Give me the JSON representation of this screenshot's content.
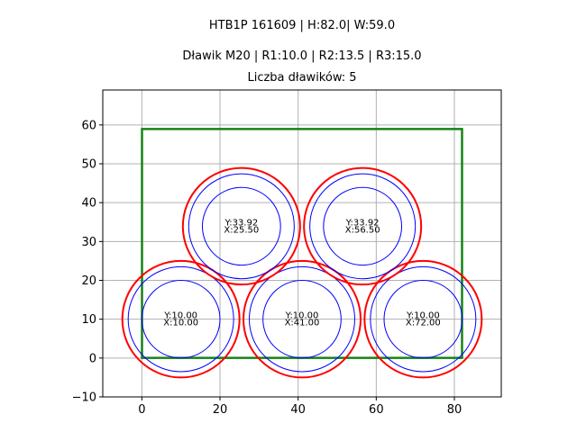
{
  "chart_data": {
    "type": "scatter",
    "title_lines": [
      "HTB1P 161609 | H:82.0| W:59.0",
      "Dławik M20 | R1:10.0 | R2:13.5 | R3:15.0",
      "Liczba dławików: 5"
    ],
    "xlim": [
      -10,
      92
    ],
    "ylim": [
      -10,
      69
    ],
    "x_ticks": [
      0,
      20,
      40,
      60,
      80
    ],
    "y_ticks": [
      -10,
      0,
      10,
      20,
      30,
      40,
      50,
      60
    ],
    "x_tick_labels": [
      "0",
      "20",
      "40",
      "60",
      "80"
    ],
    "y_tick_labels": [
      "−10",
      "0",
      "10",
      "20",
      "30",
      "40",
      "50",
      "60"
    ],
    "grid": true,
    "colors": {
      "outer_rect": "#008000",
      "inner_rect": "#3a8a3a",
      "r3_circle": "#ff0000",
      "r1_r2_circles": "#0000ff",
      "grid": "#b0b0b0"
    },
    "box": {
      "x": 0,
      "y": 0,
      "width": 82,
      "height": 59
    },
    "radii": {
      "r1": 10.0,
      "r2": 13.5,
      "r3": 15.0
    },
    "glands": [
      {
        "x": 10.0,
        "y": 10.0,
        "label_y": "Y:10.00",
        "label_x": "X:10.00"
      },
      {
        "x": 41.0,
        "y": 10.0,
        "label_y": "Y:10.00",
        "label_x": "X:41.00"
      },
      {
        "x": 72.0,
        "y": 10.0,
        "label_y": "Y:10.00",
        "label_x": "X:72.00"
      },
      {
        "x": 25.5,
        "y": 33.92,
        "label_y": "Y:33.92",
        "label_x": "X:25.50"
      },
      {
        "x": 56.5,
        "y": 33.92,
        "label_y": "Y:33.92",
        "label_x": "X:56.50"
      }
    ]
  }
}
